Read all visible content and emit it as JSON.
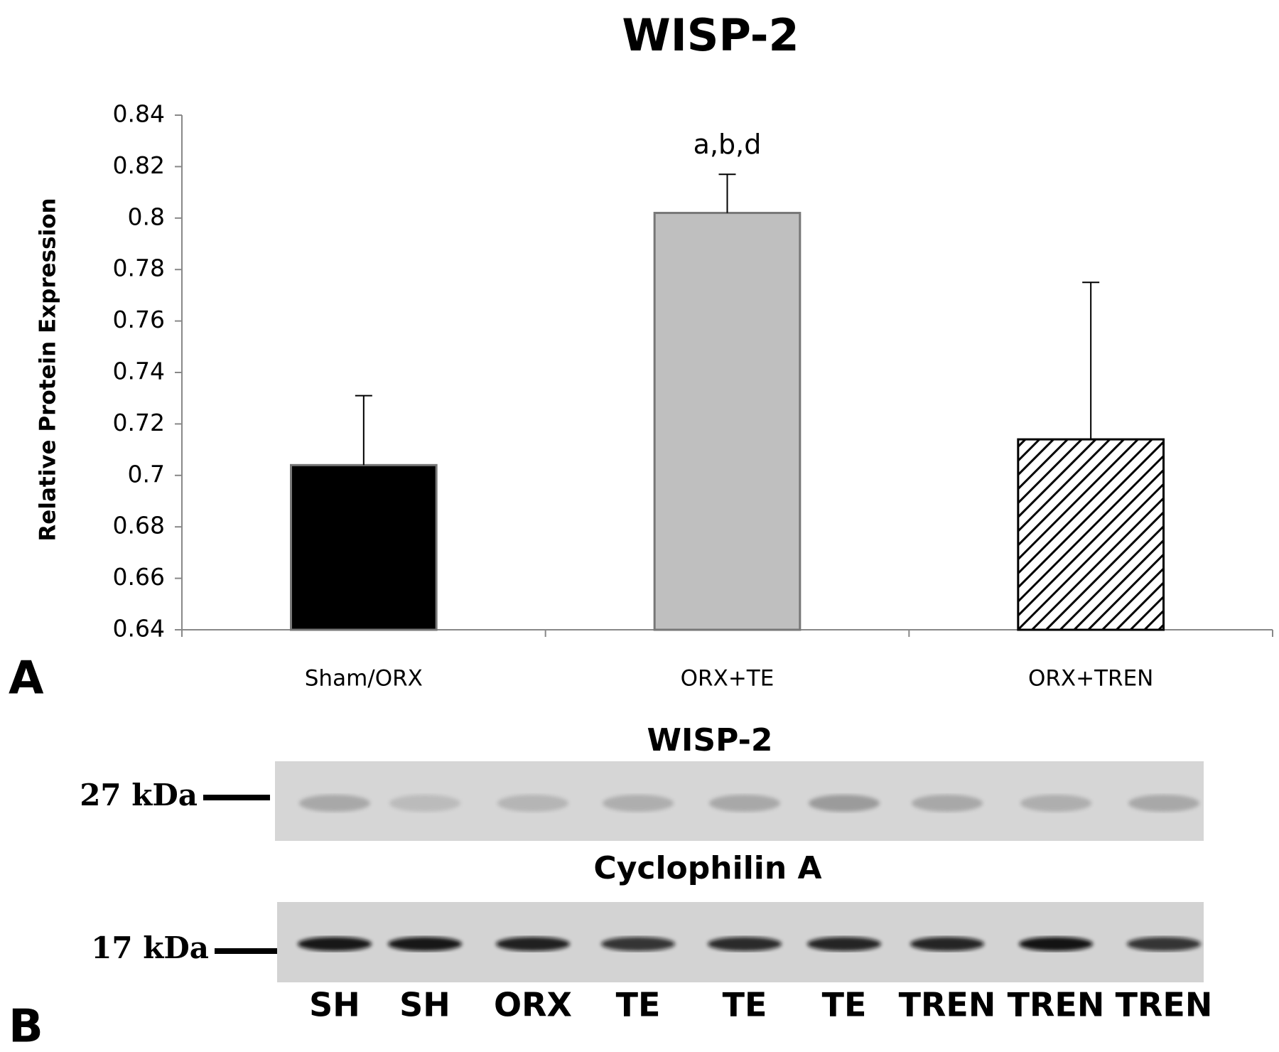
{
  "chart_data": {
    "type": "bar",
    "title": "WISP-2",
    "y_label": "Relative Protein Expression",
    "categories": [
      "Sham/ORX",
      "ORX+TE",
      "ORX+TREN"
    ],
    "values": [
      0.704,
      0.802,
      0.714
    ],
    "errors": [
      0.027,
      0.015,
      0.061
    ],
    "colors": [
      "#000000",
      "#bfbfbf",
      "#ffffff"
    ],
    "hatched": [
      false,
      false,
      true
    ],
    "annotations": [
      null,
      "a,b,d",
      null
    ],
    "ylim": [
      0.64,
      0.84
    ],
    "yticks": [
      0.64,
      0.66,
      0.68,
      0.7,
      0.72,
      0.74,
      0.76,
      0.78,
      0.8,
      0.82,
      0.84
    ],
    "grid": false,
    "panel_label": "A"
  },
  "blot": {
    "panel_label": "B",
    "top_title": "WISP-2",
    "bottom_title": "Cyclophilin A",
    "top_marker": "27 kDa",
    "bottom_marker": "17 kDa",
    "lanes": [
      "SH",
      "SH",
      "ORX",
      "TE",
      "TE",
      "TE",
      "TREN",
      "TREN",
      "TREN"
    ]
  }
}
